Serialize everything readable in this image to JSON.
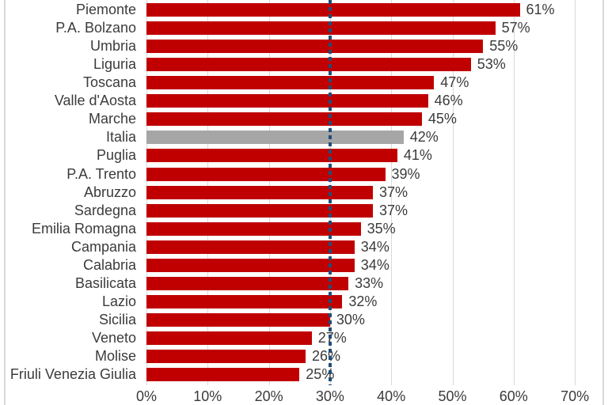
{
  "chart_data": {
    "type": "bar",
    "orientation": "horizontal",
    "title": "",
    "xlabel": "",
    "ylabel": "",
    "xlim": [
      0,
      74.6
    ],
    "grid": true,
    "series": [
      {
        "name": "Piemonte",
        "value": 61,
        "label": "61%",
        "highlight": false
      },
      {
        "name": "P.A. Bolzano",
        "value": 57,
        "label": "57%",
        "highlight": false
      },
      {
        "name": "Umbria",
        "value": 55,
        "label": "55%",
        "highlight": false
      },
      {
        "name": "Liguria",
        "value": 53,
        "label": "53%",
        "highlight": false
      },
      {
        "name": "Toscana",
        "value": 47,
        "label": "47%",
        "highlight": false
      },
      {
        "name": "Valle d'Aosta",
        "value": 46,
        "label": "46%",
        "highlight": false
      },
      {
        "name": "Marche",
        "value": 45,
        "label": "45%",
        "highlight": false
      },
      {
        "name": "Italia",
        "value": 42,
        "label": "42%",
        "highlight": true
      },
      {
        "name": "Puglia",
        "value": 41,
        "label": "41%",
        "highlight": false
      },
      {
        "name": "P.A. Trento",
        "value": 39,
        "label": "39%",
        "highlight": false
      },
      {
        "name": "Abruzzo",
        "value": 37,
        "label": "37%",
        "highlight": false
      },
      {
        "name": "Sardegna",
        "value": 37,
        "label": "37%",
        "highlight": false
      },
      {
        "name": "Emilia Romagna",
        "value": 35,
        "label": "35%",
        "highlight": false
      },
      {
        "name": "Campania",
        "value": 34,
        "label": "34%",
        "highlight": false
      },
      {
        "name": "Calabria",
        "value": 34,
        "label": "34%",
        "highlight": false
      },
      {
        "name": "Basilicata",
        "value": 33,
        "label": "33%",
        "highlight": false
      },
      {
        "name": "Lazio",
        "value": 32,
        "label": "32%",
        "highlight": false
      },
      {
        "name": "Sicilia",
        "value": 30,
        "label": "30%",
        "highlight": false
      },
      {
        "name": "Veneto",
        "value": 27,
        "label": "27%",
        "highlight": false
      },
      {
        "name": "Molise",
        "value": 26,
        "label": "26%",
        "highlight": false
      },
      {
        "name": "Friuli Venezia Giulia",
        "value": 25,
        "label": "25%",
        "highlight": false
      }
    ],
    "x_ticks": [
      {
        "value": 0,
        "label": "0%"
      },
      {
        "value": 10,
        "label": "10%"
      },
      {
        "value": 20,
        "label": "20%"
      },
      {
        "value": 30,
        "label": "30%"
      },
      {
        "value": 40,
        "label": "40%"
      },
      {
        "value": 50,
        "label": "50%"
      },
      {
        "value": 60,
        "label": "60%"
      },
      {
        "value": 70,
        "label": "70%"
      }
    ],
    "reference_line": {
      "value": 30,
      "style": "dotted"
    },
    "legend": null
  },
  "colors": {
    "bar": "#C00000",
    "highlight_bar": "#A6A6A6",
    "gridline": "#D9D9D9",
    "chart_border": "#D9D9D9",
    "reference_line": "#1F4E79",
    "text": "#3B3B3B"
  }
}
